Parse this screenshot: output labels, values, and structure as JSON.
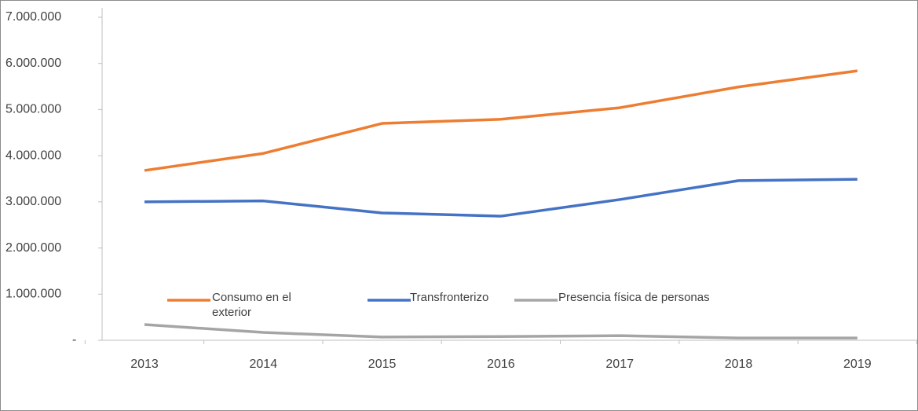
{
  "chart_data": {
    "type": "line",
    "categories": [
      "2013",
      "2014",
      "2015",
      "2016",
      "2017",
      "2018",
      "2019"
    ],
    "series": [
      {
        "name": "Consumo  en el exterior",
        "color": "#ed7d31",
        "values": [
          3680000,
          4050000,
          4700000,
          4790000,
          5040000,
          5490000,
          5840000
        ]
      },
      {
        "name": "Transfronterizo",
        "color": "#4472c4",
        "values": [
          3000000,
          3020000,
          2760000,
          2690000,
          3050000,
          3460000,
          3490000
        ]
      },
      {
        "name": "Presencia física de personas",
        "color": "#a5a5a5",
        "values": [
          340000,
          170000,
          70000,
          80000,
          100000,
          50000,
          50000
        ]
      }
    ],
    "ylim": [
      0,
      7000000
    ],
    "yticks": [
      {
        "value": 0,
        "label": "-"
      },
      {
        "value": 1000000,
        "label": "1.000.000"
      },
      {
        "value": 2000000,
        "label": "2.000.000"
      },
      {
        "value": 3000000,
        "label": "3.000.000"
      },
      {
        "value": 4000000,
        "label": "4.000.000"
      },
      {
        "value": 5000000,
        "label": "5.000.000"
      },
      {
        "value": 6000000,
        "label": "6.000.000"
      },
      {
        "value": 7000000,
        "label": "7.000.000"
      }
    ],
    "grid": false,
    "legend": "bottom"
  }
}
